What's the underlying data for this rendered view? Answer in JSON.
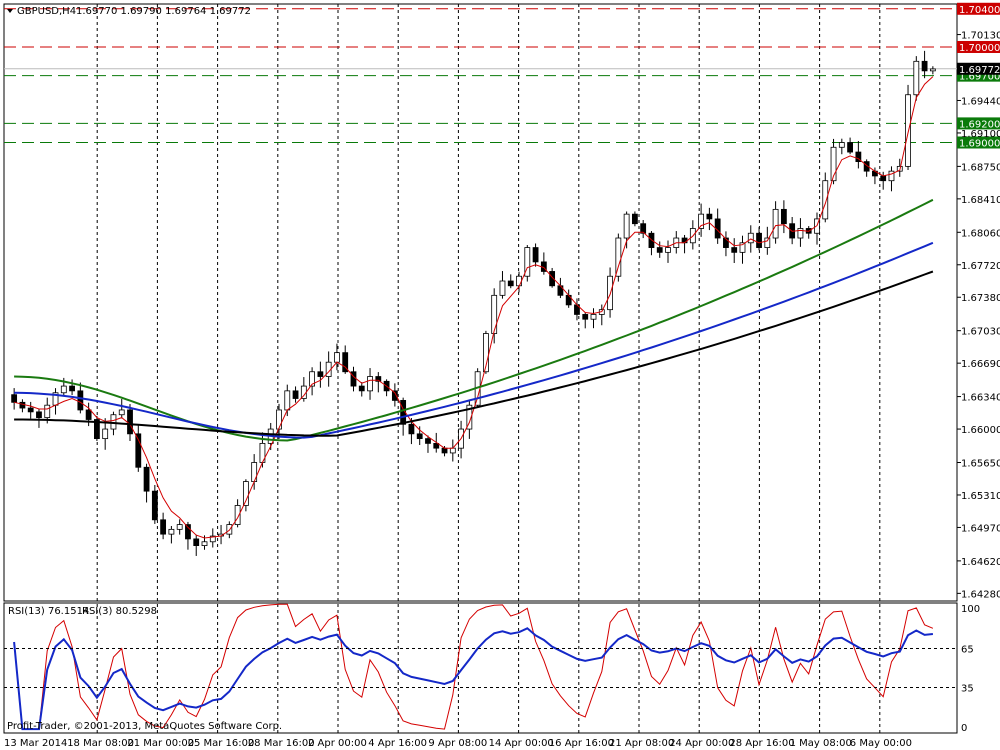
{
  "header": {
    "symbol": "GBPUSD,H4",
    "ohlc": "1.69770 1.69790 1.69764 1.69772"
  },
  "rsi_header": {
    "label1": "RSI(13) 76.1514",
    "label2": "RSI(3) 80.5298"
  },
  "copyright": "Profit-Trader, ©2001-2013, MetaQuotes Software Corp.",
  "colors": {
    "candle": "#000000",
    "ma_fast": "#d40000",
    "ma_green": "#1a7a10",
    "ma_blue": "#1428c8",
    "ma_black": "#000000",
    "red_levels": "#cc0000",
    "green_levels": "#0a7a0a",
    "rsi13": "#1428c8",
    "rsi3": "#d40000"
  },
  "chart_data": [
    {
      "type": "candlestick",
      "ylim": [
        1.642,
        1.7045
      ],
      "y_ticks": [
        "1.70130",
        "1.69440",
        "1.69100",
        "1.68750",
        "1.68410",
        "1.68060",
        "1.67720",
        "1.67380",
        "1.67030",
        "1.66690",
        "1.66340",
        "1.66000",
        "1.65650",
        "1.65310",
        "1.64970",
        "1.64620",
        "1.64280"
      ],
      "x_labels": [
        "13 Mar 2014",
        "18 Mar 08:00",
        "21 Mar 00:00",
        "25 Mar 16:00",
        "28 Mar 16:00",
        "2 Apr 00:00",
        "4 Apr 16:00",
        "9 Apr 08:00",
        "14 Apr 00:00",
        "16 Apr 16:00",
        "21 Apr 08:00",
        "24 Apr 00:00",
        "28 Apr 16:00",
        "1 May 08:00",
        "6 May 00:00"
      ],
      "levels": [
        {
          "value": 1.704,
          "label": "1.70400",
          "kind": "red"
        },
        {
          "value": 1.7,
          "label": "1.70000",
          "kind": "red"
        },
        {
          "value": 1.697,
          "label": "1.69700",
          "kind": "green"
        },
        {
          "value": 1.692,
          "label": "1.69200",
          "kind": "green"
        },
        {
          "value": 1.69,
          "label": "1.69000",
          "kind": "green"
        }
      ],
      "current_price": {
        "value": 1.69772,
        "label": "1.69772"
      },
      "close_path": [
        1.6628,
        1.6622,
        1.6618,
        1.6612,
        1.6625,
        1.6638,
        1.6645,
        1.664,
        1.662,
        1.661,
        1.659,
        1.66,
        1.6615,
        1.662,
        1.6595,
        1.656,
        1.6535,
        1.6505,
        1.649,
        1.6495,
        1.65,
        1.6485,
        1.6478,
        1.6482,
        1.6488,
        1.649,
        1.65,
        1.652,
        1.6545,
        1.6565,
        1.6585,
        1.66,
        1.662,
        1.664,
        1.6632,
        1.6645,
        1.666,
        1.6655,
        1.667,
        1.668,
        1.666,
        1.6645,
        1.664,
        1.6655,
        1.665,
        1.664,
        1.663,
        1.6605,
        1.6595,
        1.659,
        1.6585,
        1.658,
        1.6575,
        1.658,
        1.66,
        1.6625,
        1.666,
        1.67,
        1.674,
        1.6755,
        1.675,
        1.676,
        1.679,
        1.6775,
        1.6765,
        1.675,
        1.674,
        1.673,
        1.672,
        1.6715,
        1.672,
        1.6725,
        1.676,
        1.68,
        1.6825,
        1.6815,
        1.6805,
        1.679,
        1.6785,
        1.679,
        1.68,
        1.6795,
        1.681,
        1.6825,
        1.682,
        1.68,
        1.679,
        1.6785,
        1.6795,
        1.6805,
        1.679,
        1.68,
        1.683,
        1.6815,
        1.68,
        1.681,
        1.6805,
        1.682,
        1.686,
        1.6895,
        1.69,
        1.689,
        1.688,
        1.687,
        1.6865,
        1.686,
        1.687,
        1.6875,
        1.695,
        1.6985,
        1.6975,
        1.6977
      ],
      "moving_averages": [
        {
          "key": "ma_fast",
          "values": [
            1.6628,
            1.6626,
            1.6624,
            1.6621,
            1.6621,
            1.6625,
            1.6629,
            1.6632,
            1.6628,
            1.6622,
            1.6612,
            1.6608,
            1.6609,
            1.6612,
            1.6605,
            1.6589,
            1.657,
            1.6548,
            1.6528,
            1.6514,
            1.6507,
            1.6497,
            1.6489,
            1.6486,
            1.6487,
            1.6488,
            1.6494,
            1.6507,
            1.6525,
            1.6545,
            1.6565,
            1.6582,
            1.6601,
            1.662,
            1.6626,
            1.6635,
            1.6647,
            1.6651,
            1.666,
            1.667,
            1.6665,
            1.6655,
            1.6648,
            1.6651,
            1.6651,
            1.6645,
            1.6638,
            1.6621,
            1.6608,
            1.6599,
            1.6592,
            1.6586,
            1.658,
            1.658,
            1.659,
            1.6607,
            1.6633,
            1.6666,
            1.6703,
            1.6729,
            1.6739,
            1.6749,
            1.6769,
            1.6772,
            1.6769,
            1.6759,
            1.675,
            1.674,
            1.673,
            1.6722,
            1.6721,
            1.6723,
            1.6741,
            1.677,
            1.6797,
            1.6806,
            1.6806,
            1.6798,
            1.6792,
            1.6791,
            1.6795,
            1.6795,
            1.6802,
            1.6813,
            1.6816,
            1.6808,
            1.6799,
            1.6792,
            1.6793,
            1.6799,
            1.6795,
            1.6797,
            1.6813,
            1.6814,
            1.6807,
            1.6808,
            1.6807,
            1.6813,
            1.6836,
            1.6865,
            1.6882,
            1.6886,
            1.6883,
            1.6876,
            1.687,
            1.6865,
            1.6867,
            1.6871,
            1.691,
            1.6947,
            1.6961,
            1.6969
          ]
        },
        {
          "key": "ma_green",
          "start": 1.6655,
          "end": 1.684,
          "low": 1.6588,
          "low_pos": 0.3
        },
        {
          "key": "ma_blue",
          "start": 1.6638,
          "end": 1.6795,
          "low": 1.6591,
          "low_pos": 0.32
        },
        {
          "key": "ma_black",
          "start": 1.661,
          "end": 1.6765,
          "low": 1.6593,
          "low_pos": 0.35
        }
      ]
    },
    {
      "type": "line",
      "title": "RSI(13) 76.1514 RSI(3) 80.5298",
      "ylim": [
        0,
        100
      ],
      "y_ticks": [
        100,
        65,
        35,
        0
      ],
      "levels": [
        65,
        35
      ],
      "series": [
        {
          "name": "RSI(13)",
          "last": 76.1514
        },
        {
          "name": "RSI(3)",
          "last": 80.5298
        }
      ]
    }
  ]
}
